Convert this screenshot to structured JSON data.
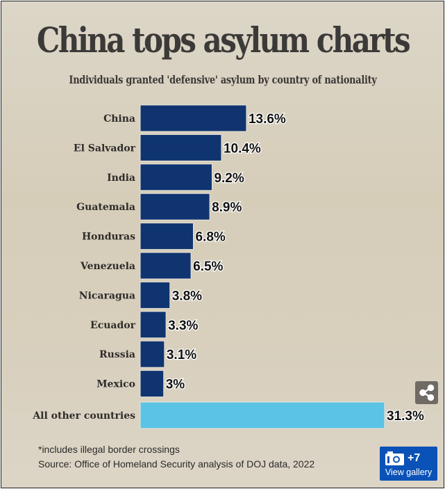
{
  "chart_data": {
    "type": "bar",
    "orientation": "horizontal",
    "title": "China tops asylum charts",
    "subtitle": "Individuals granted 'defensive' asylum by country of nationality",
    "categories": [
      "China",
      "El Salvador",
      "India",
      "Guatemala",
      "Honduras",
      "Venezuela",
      "Nicaragua",
      "Ecuador",
      "Russia",
      "Mexico",
      "All other countries"
    ],
    "values": [
      13.6,
      10.4,
      9.2,
      8.9,
      6.8,
      6.5,
      3.8,
      3.3,
      3.1,
      3.0,
      31.3
    ],
    "value_labels": [
      "13.6%",
      "10.4%",
      "9.2%",
      "8.9%",
      "6.8%",
      "6.5%",
      "3.8%",
      "3.3%",
      "3.1%",
      "3%",
      "31.3%"
    ],
    "unit": "%",
    "xlim": [
      0,
      31.3
    ],
    "grid": false,
    "colors": {
      "primary": "#0f3470",
      "other": "#5bc3e6"
    }
  },
  "footnote": "*includes illegal border crossings",
  "source": "Source: Office of Homeland Security analysis of DOJ data, 2022",
  "gallery": {
    "count": "+7",
    "label": "View gallery"
  }
}
